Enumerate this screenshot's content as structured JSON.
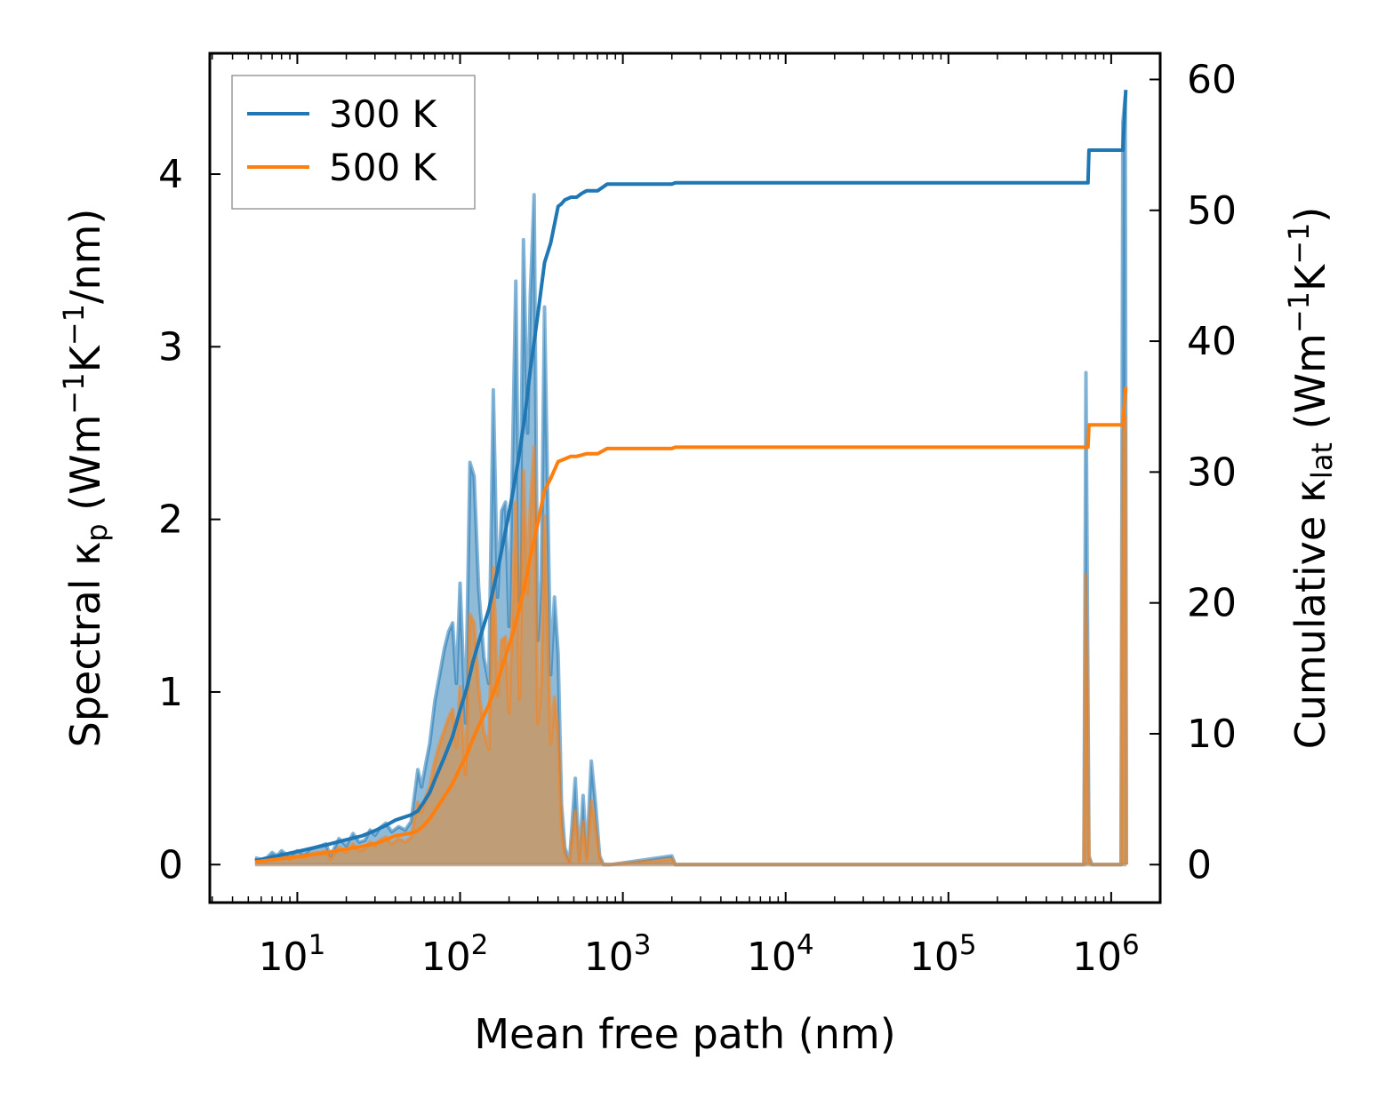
{
  "chart_data": {
    "type": "line",
    "xscale": "log",
    "xlim": [
      2.9,
      2000000
    ],
    "ylim_left": [
      -0.22,
      4.7
    ],
    "ylim_right": [
      -2.9,
      62
    ],
    "xlabel": "Mean free path (nm)",
    "ylabel_left": {
      "prefix": "Spectral κ",
      "sub": "p",
      "unit_a": " (Wm",
      "sup1": "−1",
      "unit_b": "K",
      "sup2": "−1",
      "unit_c": "/nm)"
    },
    "ylabel_right": {
      "prefix": "Cumulative κ",
      "sub": "lat",
      "unit_a": " (Wm",
      "sup1": "−1",
      "unit_b": "K",
      "sup2": "−1",
      "unit_c": ")"
    },
    "xticks": [
      {
        "value": 10,
        "base": "10",
        "exp": "1"
      },
      {
        "value": 100,
        "base": "10",
        "exp": "2"
      },
      {
        "value": 1000,
        "base": "10",
        "exp": "3"
      },
      {
        "value": 10000,
        "base": "10",
        "exp": "4"
      },
      {
        "value": 100000,
        "base": "10",
        "exp": "5"
      },
      {
        "value": 1000000,
        "base": "10",
        "exp": "6"
      }
    ],
    "yticks_left": [
      "0",
      "1",
      "2",
      "3",
      "4"
    ],
    "yticks_right": [
      "0",
      "10",
      "20",
      "30",
      "40",
      "50",
      "60"
    ],
    "legend": {
      "position": "upper-left",
      "entries": [
        "300 K",
        "500 K"
      ]
    },
    "colors": {
      "300K": "#1f77b4",
      "500K": "#ff7f0e",
      "fill500": "#c49a6c"
    },
    "spectral": [
      {
        "name": "300 K",
        "x": [
          5.5,
          6,
          6.5,
          7,
          7.5,
          8,
          8.5,
          9,
          10,
          11,
          12,
          13,
          14,
          15,
          16,
          18,
          20,
          22,
          24,
          26,
          28,
          30,
          32,
          35,
          38,
          42,
          46,
          50,
          55,
          58,
          62,
          65,
          70,
          75,
          80,
          85,
          90,
          95,
          100,
          108,
          115,
          122,
          130,
          140,
          150,
          160,
          170,
          180,
          190,
          200,
          210,
          220,
          232,
          245,
          260,
          270,
          285,
          300,
          315,
          330,
          345,
          360,
          380,
          400,
          420,
          440,
          470,
          510,
          540,
          570,
          600,
          640,
          680,
          720,
          760,
          800,
          840,
          2000,
          2100,
          2200,
          2300,
          680000,
          700000,
          730000,
          760000,
          790000,
          800000,
          1150000,
          1180000,
          1220000,
          1240000
        ],
        "y": [
          0.04,
          0.03,
          0.04,
          0.07,
          0.05,
          0.08,
          0.06,
          0.05,
          0.08,
          0.06,
          0.09,
          0.1,
          0.11,
          0.12,
          0.05,
          0.15,
          0.11,
          0.18,
          0.13,
          0.14,
          0.2,
          0.17,
          0.21,
          0.24,
          0.19,
          0.22,
          0.2,
          0.25,
          0.55,
          0.45,
          0.6,
          0.7,
          0.95,
          1.1,
          1.25,
          1.35,
          1.4,
          1.05,
          1.63,
          0.82,
          2.33,
          2.25,
          1.6,
          1.2,
          1.05,
          2.75,
          1.55,
          2.05,
          2.1,
          1.38,
          2.35,
          3.38,
          1.52,
          3.62,
          2.5,
          3.3,
          3.88,
          1.3,
          1.65,
          3.23,
          2.15,
          1.1,
          1.55,
          1.22,
          0.35,
          0.1,
          0.02,
          0.5,
          0.03,
          0.4,
          0.05,
          0.6,
          0.35,
          0.05,
          0.0,
          0.0,
          0.0,
          0.05,
          0.0,
          0.0,
          0.0,
          0.0,
          2.85,
          0.05,
          0.0,
          0.0,
          0.0,
          0.0,
          4.3,
          4.45,
          0.0
        ]
      },
      {
        "name": "500 K",
        "x": [
          5.5,
          6,
          6.5,
          7,
          7.5,
          8,
          8.5,
          9,
          10,
          11,
          12,
          13,
          14,
          15,
          16,
          18,
          20,
          22,
          24,
          26,
          28,
          30,
          32,
          35,
          38,
          42,
          46,
          50,
          55,
          58,
          62,
          65,
          70,
          75,
          80,
          85,
          90,
          95,
          100,
          108,
          115,
          122,
          130,
          140,
          150,
          160,
          170,
          180,
          190,
          200,
          210,
          220,
          232,
          245,
          260,
          270,
          285,
          300,
          315,
          330,
          345,
          360,
          380,
          400,
          420,
          440,
          470,
          510,
          540,
          570,
          600,
          640,
          680,
          720,
          760,
          800,
          840,
          2000,
          2100,
          2200,
          2300,
          680000,
          700000,
          730000,
          760000,
          790000,
          800000,
          1150000,
          1180000,
          1220000,
          1240000
        ],
        "y": [
          0.02,
          0.02,
          0.03,
          0.04,
          0.03,
          0.05,
          0.04,
          0.03,
          0.05,
          0.04,
          0.06,
          0.07,
          0.07,
          0.08,
          0.03,
          0.1,
          0.07,
          0.12,
          0.08,
          0.09,
          0.13,
          0.11,
          0.14,
          0.16,
          0.12,
          0.15,
          0.13,
          0.16,
          0.36,
          0.3,
          0.4,
          0.45,
          0.6,
          0.7,
          0.78,
          0.85,
          0.9,
          0.68,
          1.03,
          0.52,
          1.45,
          1.4,
          1.02,
          0.77,
          0.67,
          1.72,
          0.98,
          1.3,
          1.32,
          0.88,
          1.48,
          2.1,
          0.96,
          2.28,
          1.57,
          2.07,
          2.42,
          0.82,
          1.04,
          2.02,
          1.35,
          0.7,
          0.97,
          0.77,
          0.22,
          0.06,
          0.01,
          0.31,
          0.02,
          0.25,
          0.03,
          0.37,
          0.22,
          0.03,
          0.0,
          0.0,
          0.0,
          0.03,
          0.0,
          0.0,
          0.0,
          0.0,
          1.68,
          0.03,
          0.0,
          0.0,
          0.0,
          0.0,
          2.5,
          2.6,
          0.0
        ]
      }
    ],
    "cumulative": [
      {
        "name": "300 K",
        "x": [
          5.5,
          10,
          15,
          20,
          25,
          30,
          35,
          40,
          50,
          55,
          60,
          65,
          70,
          80,
          90,
          100,
          110,
          120,
          130,
          140,
          150,
          170,
          190,
          210,
          230,
          250,
          270,
          300,
          330,
          360,
          400,
          420,
          440,
          480,
          520,
          560,
          600,
          700,
          800,
          2000,
          2100,
          680000,
          720000,
          730000,
          1000000,
          1100000,
          1180000,
          1230000
        ],
        "y": [
          0.3,
          1.0,
          1.5,
          1.9,
          2.2,
          2.6,
          3.0,
          3.4,
          3.8,
          4.1,
          4.8,
          5.5,
          6.5,
          8.2,
          9.8,
          11.8,
          13.5,
          15.5,
          17.0,
          18.3,
          19.5,
          22.5,
          25.5,
          28.3,
          31.2,
          34.3,
          37.8,
          42.0,
          46.0,
          47.5,
          50.3,
          50.5,
          50.8,
          51.0,
          51.0,
          51.3,
          51.5,
          51.5,
          52.0,
          52.0,
          52.1,
          52.1,
          52.1,
          54.6,
          54.6,
          54.6,
          54.6,
          59.2
        ]
      },
      {
        "name": "500 K",
        "x": [
          5.5,
          10,
          15,
          20,
          25,
          30,
          35,
          40,
          50,
          55,
          60,
          65,
          70,
          80,
          90,
          100,
          110,
          120,
          130,
          140,
          150,
          170,
          190,
          210,
          230,
          250,
          270,
          300,
          330,
          360,
          400,
          420,
          440,
          480,
          520,
          560,
          600,
          700,
          800,
          2000,
          2100,
          680000,
          720000,
          730000,
          1000000,
          1100000,
          1180000,
          1230000
        ],
        "y": [
          0.2,
          0.6,
          0.9,
          1.2,
          1.4,
          1.6,
          1.9,
          2.2,
          2.4,
          2.6,
          3.0,
          3.5,
          4.1,
          5.2,
          6.2,
          7.4,
          8.4,
          9.6,
          10.6,
          11.4,
          12.2,
          14.0,
          15.9,
          17.6,
          19.4,
          21.4,
          23.5,
          26.1,
          28.6,
          29.5,
          30.8,
          30.9,
          31.0,
          31.2,
          31.2,
          31.3,
          31.4,
          31.4,
          31.8,
          31.8,
          31.9,
          31.9,
          31.9,
          33.6,
          33.6,
          33.6,
          33.6,
          36.5
        ]
      }
    ]
  }
}
